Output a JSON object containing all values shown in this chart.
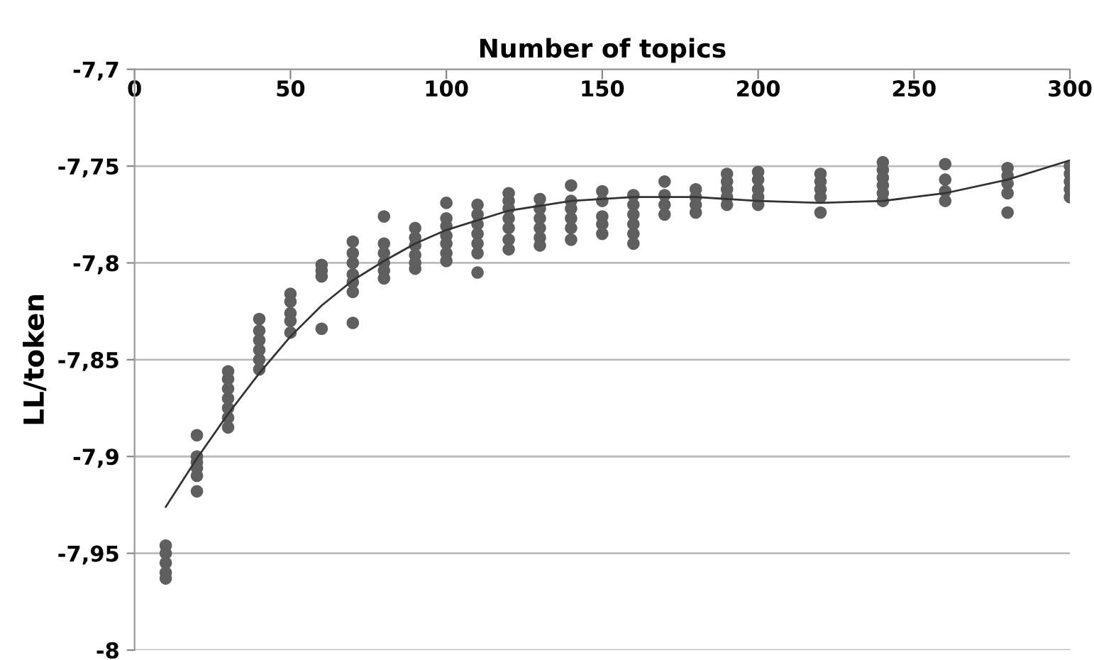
{
  "chart_data": {
    "type": "scatter",
    "xlabel": "Number of topics",
    "ylabel": "LL/token",
    "xlim": [
      0,
      300
    ],
    "xticks": [
      0,
      50,
      100,
      150,
      200,
      250,
      300
    ],
    "ylim": [
      -8,
      -7.7
    ],
    "yticks": [
      {
        "value": -8,
        "label": "-8"
      },
      {
        "value": -7.95,
        "label": "-7,95"
      },
      {
        "value": -7.9,
        "label": "-7,9"
      },
      {
        "value": -7.85,
        "label": "-7,85"
      },
      {
        "value": -7.8,
        "label": "-7,8"
      },
      {
        "value": -7.75,
        "label": "-7,75"
      },
      {
        "value": -7.7,
        "label": "-7,7"
      }
    ],
    "grid": "y",
    "legend": false,
    "marker": "circle",
    "series": [
      {
        "color": "#5f5f5f",
        "x": [
          10,
          10,
          10,
          10,
          10,
          20,
          20,
          20,
          20,
          20,
          20,
          30,
          30,
          30,
          30,
          30,
          30,
          30,
          40,
          40,
          40,
          40,
          40,
          40,
          50,
          50,
          50,
          50,
          50,
          60,
          60,
          60,
          60,
          70,
          70,
          70,
          70,
          70,
          70,
          70,
          80,
          80,
          80,
          80,
          80,
          80,
          90,
          90,
          90,
          90,
          90,
          90,
          100,
          100,
          100,
          100,
          100,
          100,
          100,
          110,
          110,
          110,
          110,
          110,
          110,
          110,
          120,
          120,
          120,
          120,
          120,
          120,
          120,
          130,
          130,
          130,
          130,
          130,
          130,
          140,
          140,
          140,
          140,
          140,
          140,
          150,
          150,
          150,
          150,
          150,
          160,
          160,
          160,
          160,
          160,
          160,
          170,
          170,
          170,
          170,
          180,
          180,
          180,
          180,
          190,
          190,
          190,
          190,
          190,
          200,
          200,
          200,
          200,
          200,
          220,
          220,
          220,
          220,
          220,
          240,
          240,
          240,
          240,
          240,
          240,
          260,
          260,
          260,
          260,
          280,
          280,
          280,
          280,
          280,
          300,
          300,
          300,
          300,
          300
        ],
        "values": [
          -7.946,
          -7.95,
          -7.955,
          -7.96,
          -7.963,
          -7.889,
          -7.9,
          -7.903,
          -7.906,
          -7.91,
          -7.918,
          -7.856,
          -7.86,
          -7.865,
          -7.87,
          -7.875,
          -7.88,
          -7.885,
          -7.829,
          -7.835,
          -7.84,
          -7.845,
          -7.85,
          -7.855,
          -7.816,
          -7.82,
          -7.826,
          -7.83,
          -7.836,
          -7.801,
          -7.804,
          -7.807,
          -7.834,
          -7.789,
          -7.795,
          -7.8,
          -7.806,
          -7.81,
          -7.815,
          -7.831,
          -7.776,
          -7.79,
          -7.795,
          -7.8,
          -7.804,
          -7.808,
          -7.782,
          -7.787,
          -7.791,
          -7.796,
          -7.8,
          -7.803,
          -7.769,
          -7.777,
          -7.781,
          -7.786,
          -7.79,
          -7.795,
          -7.799,
          -7.77,
          -7.775,
          -7.78,
          -7.785,
          -7.79,
          -7.795,
          -7.805,
          -7.764,
          -7.768,
          -7.772,
          -7.777,
          -7.782,
          -7.788,
          -7.793,
          -7.767,
          -7.772,
          -7.777,
          -7.782,
          -7.787,
          -7.791,
          -7.76,
          -7.768,
          -7.772,
          -7.777,
          -7.782,
          -7.788,
          -7.763,
          -7.768,
          -7.776,
          -7.78,
          -7.785,
          -7.765,
          -7.77,
          -7.775,
          -7.78,
          -7.785,
          -7.79,
          -7.758,
          -7.765,
          -7.77,
          -7.775,
          -7.762,
          -7.766,
          -7.77,
          -7.774,
          -7.754,
          -7.758,
          -7.762,
          -7.766,
          -7.77,
          -7.753,
          -7.757,
          -7.762,
          -7.766,
          -7.77,
          -7.754,
          -7.758,
          -7.762,
          -7.766,
          -7.774,
          -7.748,
          -7.752,
          -7.756,
          -7.76,
          -7.764,
          -7.768,
          -7.749,
          -7.757,
          -7.763,
          -7.768,
          -7.751,
          -7.755,
          -7.759,
          -7.764,
          -7.774,
          -7.75,
          -7.754,
          -7.758,
          -7.762,
          -7.766
        ]
      },
      {
        "type": "line",
        "color": "#333333",
        "marker": "none",
        "line_style": "solid",
        "x": [
          10,
          20,
          30,
          40,
          50,
          60,
          70,
          80,
          90,
          100,
          120,
          140,
          160,
          180,
          200,
          220,
          240,
          260,
          280,
          300
        ],
        "values": [
          -7.926,
          -7.901,
          -7.878,
          -7.857,
          -7.838,
          -7.822,
          -7.809,
          -7.799,
          -7.79,
          -7.783,
          -7.773,
          -7.768,
          -7.766,
          -7.766,
          -7.768,
          -7.769,
          -7.768,
          -7.764,
          -7.757,
          -7.747
        ]
      }
    ]
  }
}
